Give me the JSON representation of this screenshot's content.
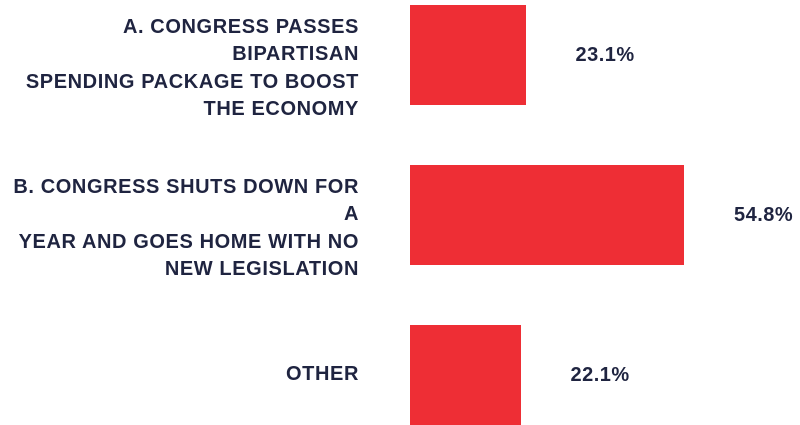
{
  "colors": {
    "bar": "#ee2e35",
    "text": "#1f2440",
    "background": "#ffffff"
  },
  "chart_data": {
    "type": "bar",
    "orientation": "horizontal",
    "title": "",
    "xlabel": "",
    "ylabel": "",
    "categories": [
      "A. CONGRESS PASSES BIPARTISAN\nSPENDING PACKAGE TO BOOST\nTHE ECONOMY",
      "B. CONGRESS SHUTS DOWN FOR A\nYEAR AND GOES HOME WITH NO\nNEW LEGISLATION",
      "OTHER"
    ],
    "values": [
      23.1,
      54.8,
      22.1
    ],
    "value_labels": [
      "23.1%",
      "54.8%",
      "22.1%"
    ],
    "unit": "%",
    "xlim": [
      0,
      100
    ],
    "grid": false,
    "legend": "none"
  }
}
